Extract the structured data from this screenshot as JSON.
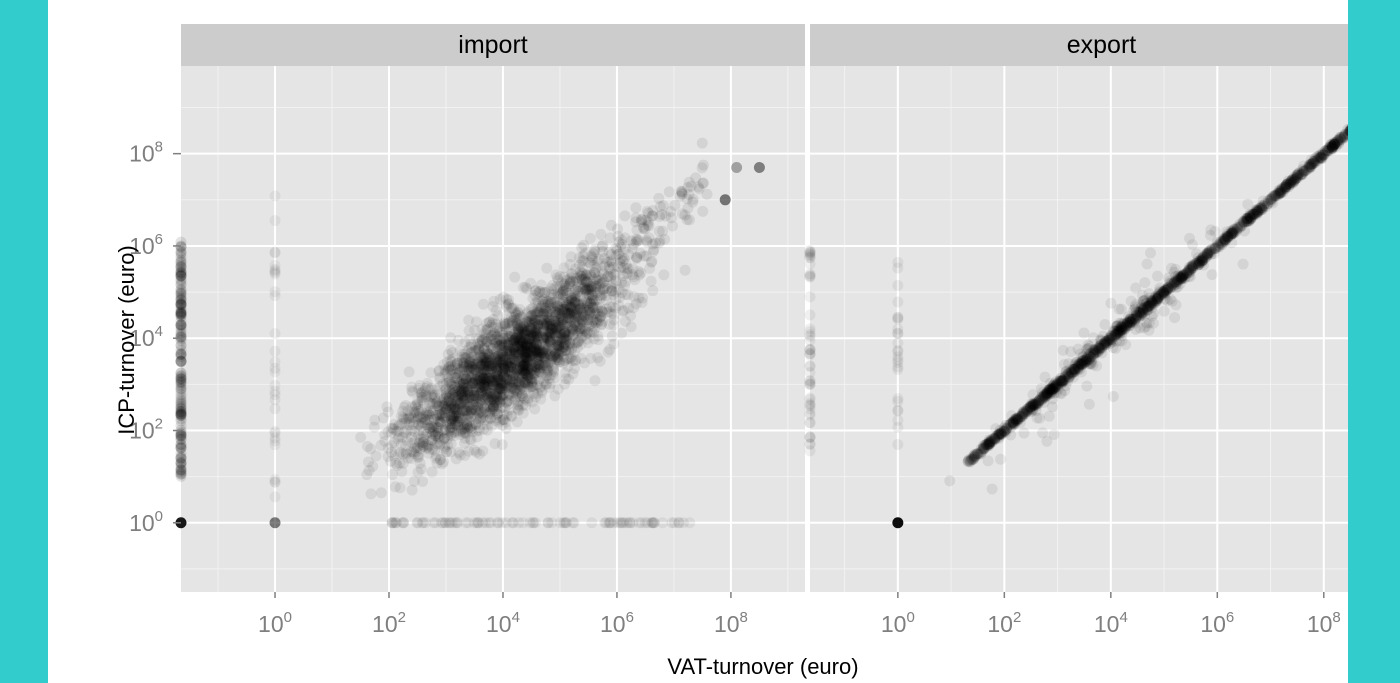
{
  "chart_data": {
    "type": "scatter",
    "facets": [
      "import",
      "export"
    ],
    "xlabel": "VAT-turnover (euro)",
    "ylabel": "ICP-turnover (euro)",
    "x_scale": "log10",
    "y_scale": "log10",
    "x_ticks": [
      1,
      100,
      10000,
      1000000,
      100000000
    ],
    "x_tick_labels": [
      "10^0",
      "10^2",
      "10^4",
      "10^6",
      "10^8"
    ],
    "y_ticks": [
      1,
      100,
      10000,
      1000000,
      100000000
    ],
    "y_tick_labels": [
      "10^0",
      "10^2",
      "10^4",
      "10^6",
      "10^8"
    ],
    "x_range_log10": [
      -1.65,
      9.3
    ],
    "y_range_log10": [
      -1.5,
      9.9
    ],
    "grid": true,
    "point_color": "#000000",
    "panel_background": "#e5e5e5",
    "strip_background": "#cccccc",
    "grid_color": "#ffffff",
    "series": [
      {
        "facet": "import",
        "description_points": [
          {
            "x": 0,
            "y": 1
          },
          {
            "x": 1,
            "y": 1
          },
          {
            "x": 300000000,
            "y": 50000000
          },
          {
            "x": 80000000,
            "y": 10000000
          },
          {
            "x": 150000000,
            "y": 50000000
          },
          {
            "x": 10000,
            "y": 10000
          },
          {
            "x": 100000,
            "y": 100000
          },
          {
            "x": 1000,
            "y": 1000
          }
        ]
      },
      {
        "facet": "export",
        "description_points": [
          {
            "x": 1,
            "y": 1
          },
          {
            "x": 20,
            "y": 20
          },
          {
            "x": 10000,
            "y": 10000
          },
          {
            "x": 1000000,
            "y": 1000000
          },
          {
            "x": 150000000,
            "y": 150000000
          },
          {
            "x": 1000000000,
            "y": 1000000000
          }
        ]
      }
    ]
  }
}
